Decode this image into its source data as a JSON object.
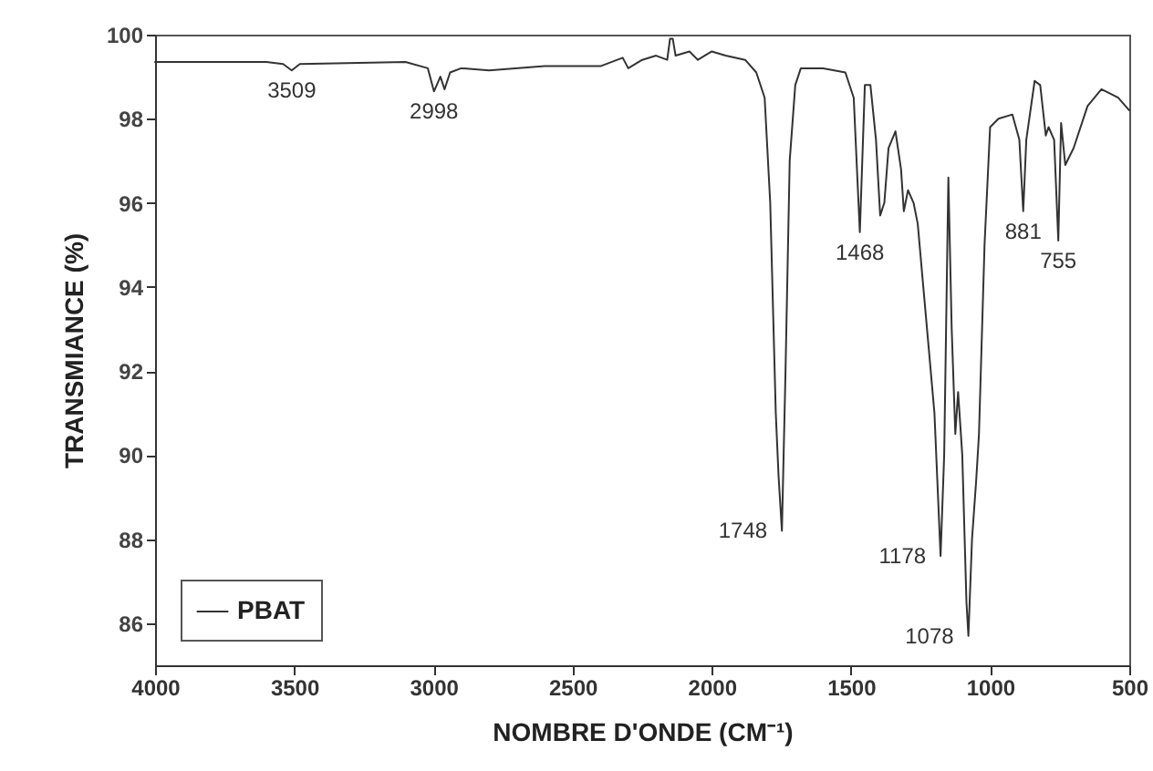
{
  "chart_data": {
    "type": "line",
    "xlabel": "NOMBRE D'ONDE (CM⁻¹)",
    "ylabel": "TRANSMIANCE (%)",
    "xlim": [
      4000,
      500
    ],
    "xticks": [
      4000,
      3500,
      3000,
      2500,
      2000,
      1500,
      1000,
      500
    ],
    "ylim": [
      85,
      100
    ],
    "yticks": [
      86,
      88,
      90,
      92,
      94,
      96,
      98,
      100
    ],
    "grid": false,
    "legend": "bottom left",
    "series": [
      {
        "name": "PBAT",
        "color": "#333333",
        "x": [
          4000,
          3600,
          3540,
          3509,
          3480,
          3100,
          3020,
          2998,
          2975,
          2960,
          2940,
          2900,
          2800,
          2600,
          2400,
          2320,
          2300,
          2250,
          2200,
          2160,
          2150,
          2140,
          2130,
          2080,
          2050,
          2000,
          1950,
          1880,
          1840,
          1810,
          1790,
          1770,
          1760,
          1748,
          1735,
          1720,
          1700,
          1680,
          1600,
          1520,
          1490,
          1468,
          1450,
          1430,
          1410,
          1395,
          1380,
          1365,
          1340,
          1320,
          1310,
          1295,
          1275,
          1260,
          1240,
          1200,
          1178,
          1165,
          1150,
          1138,
          1125,
          1115,
          1100,
          1085,
          1078,
          1065,
          1050,
          1040,
          1020,
          1000,
          970,
          920,
          895,
          881,
          870,
          840,
          820,
          800,
          790,
          770,
          755,
          745,
          730,
          700,
          650,
          600,
          540,
          500
        ],
        "values": [
          99.35,
          99.35,
          99.3,
          99.15,
          99.3,
          99.35,
          99.2,
          98.65,
          99.0,
          98.7,
          99.1,
          99.2,
          99.15,
          99.25,
          99.25,
          99.45,
          99.2,
          99.4,
          99.5,
          99.4,
          99.9,
          99.9,
          99.5,
          99.6,
          99.4,
          99.6,
          99.5,
          99.4,
          99.1,
          98.5,
          96,
          91,
          89.5,
          88.2,
          92,
          97,
          98.8,
          99.2,
          99.2,
          99.1,
          98.5,
          95.3,
          98.8,
          98.8,
          97.5,
          95.7,
          96.0,
          97.3,
          97.7,
          96.8,
          95.8,
          96.3,
          96.0,
          95.5,
          94,
          91,
          87.6,
          90,
          96.6,
          93,
          90.5,
          91.5,
          90,
          86.5,
          85.7,
          88,
          89.4,
          90.5,
          95,
          97.8,
          98,
          98.1,
          97.5,
          95.8,
          97.5,
          98.9,
          98.8,
          97.6,
          97.8,
          97.5,
          95.1,
          97.9,
          96.9,
          97.3,
          98.3,
          98.7,
          98.5,
          98.2
        ]
      }
    ],
    "annotations": [
      {
        "text": "3509",
        "x": 3509,
        "y": 99.15
      },
      {
        "text": "2998",
        "x": 2998,
        "y": 98.65
      },
      {
        "text": "1748",
        "x": 1748,
        "y": 88.2
      },
      {
        "text": "1468",
        "x": 1468,
        "y": 95.3
      },
      {
        "text": "1178",
        "x": 1178,
        "y": 87.6
      },
      {
        "text": "1078",
        "x": 1078,
        "y": 85.7
      },
      {
        "text": "881",
        "x": 881,
        "y": 95.8
      },
      {
        "text": "755",
        "x": 755,
        "y": 95.1
      }
    ]
  }
}
